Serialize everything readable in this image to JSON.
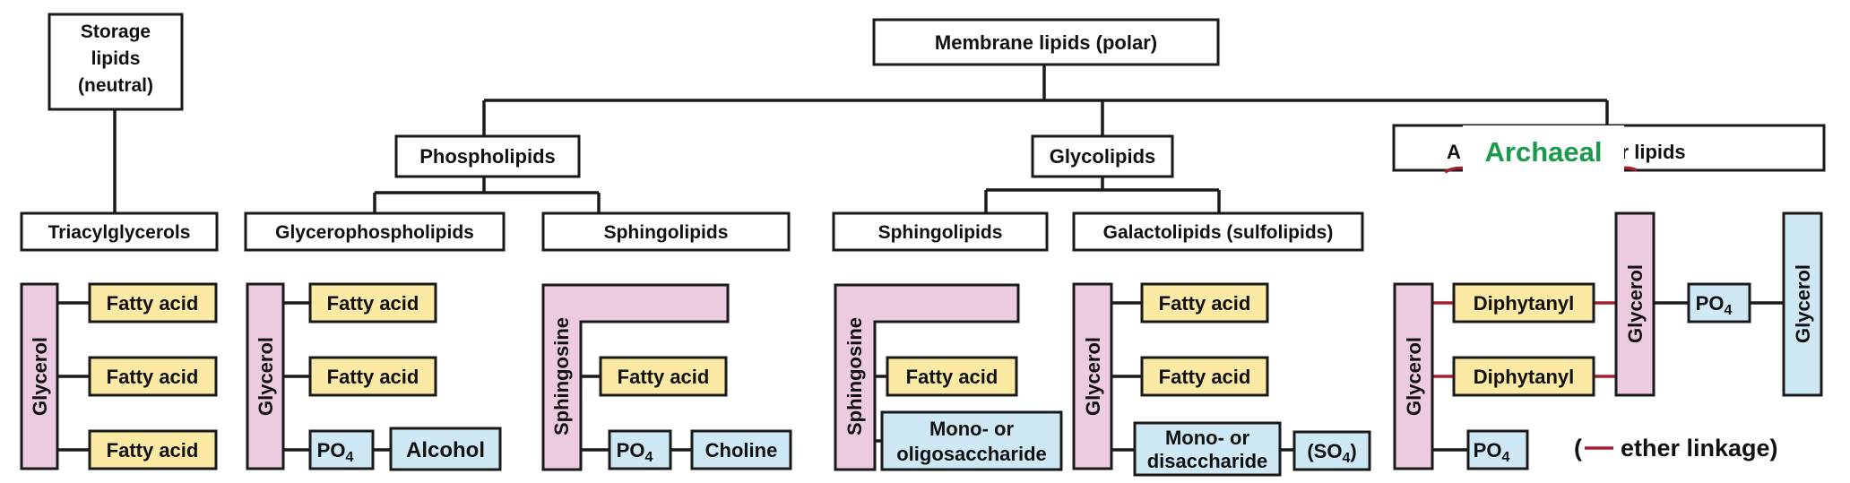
{
  "header": {
    "storage": [
      "Storage",
      "lipids",
      "(neutral)"
    ],
    "membrane": "Membrane lipids (polar)"
  },
  "classes": {
    "phospholipids": "Phospholipids",
    "glycolipids": "Glycolipids",
    "archaeal_a": "A",
    "archaeal_overlay": "Archaeal",
    "archaeal_rest": "ether lipids"
  },
  "subclasses": {
    "triacylglycerols": "Triacylglycerols",
    "glycerophospholipids": "Glycerophospholipids",
    "sphingolipids_phospho": "Sphingolipids",
    "sphingolipids_glyco": "Sphingolipids",
    "galactolipids": "Galactolipids (sulfolipids)"
  },
  "components": {
    "glycerol": "Glycerol",
    "fatty_acid": "Fatty acid",
    "po4_base": "PO",
    "po4_sub": "4",
    "alcohol": "Alcohol",
    "sphingosine": "Sphingosine",
    "choline": "Choline",
    "mono_oligo": [
      "Mono- or",
      "oligosaccharide"
    ],
    "mono_di": [
      "Mono- or",
      "disaccharide"
    ],
    "so4_open": "(SO",
    "so4_sub": "4",
    "so4_close": ")",
    "diphytanyl": "Diphytanyl"
  },
  "legend": {
    "open": "(",
    "text": "ether linkage)"
  },
  "colors": {
    "pink": "#eccbe0",
    "yellow": "#fbe9a4",
    "blue": "#cfe8f6",
    "ether_red": "#a0202e",
    "archaeal_green": "#1a9a4a"
  }
}
